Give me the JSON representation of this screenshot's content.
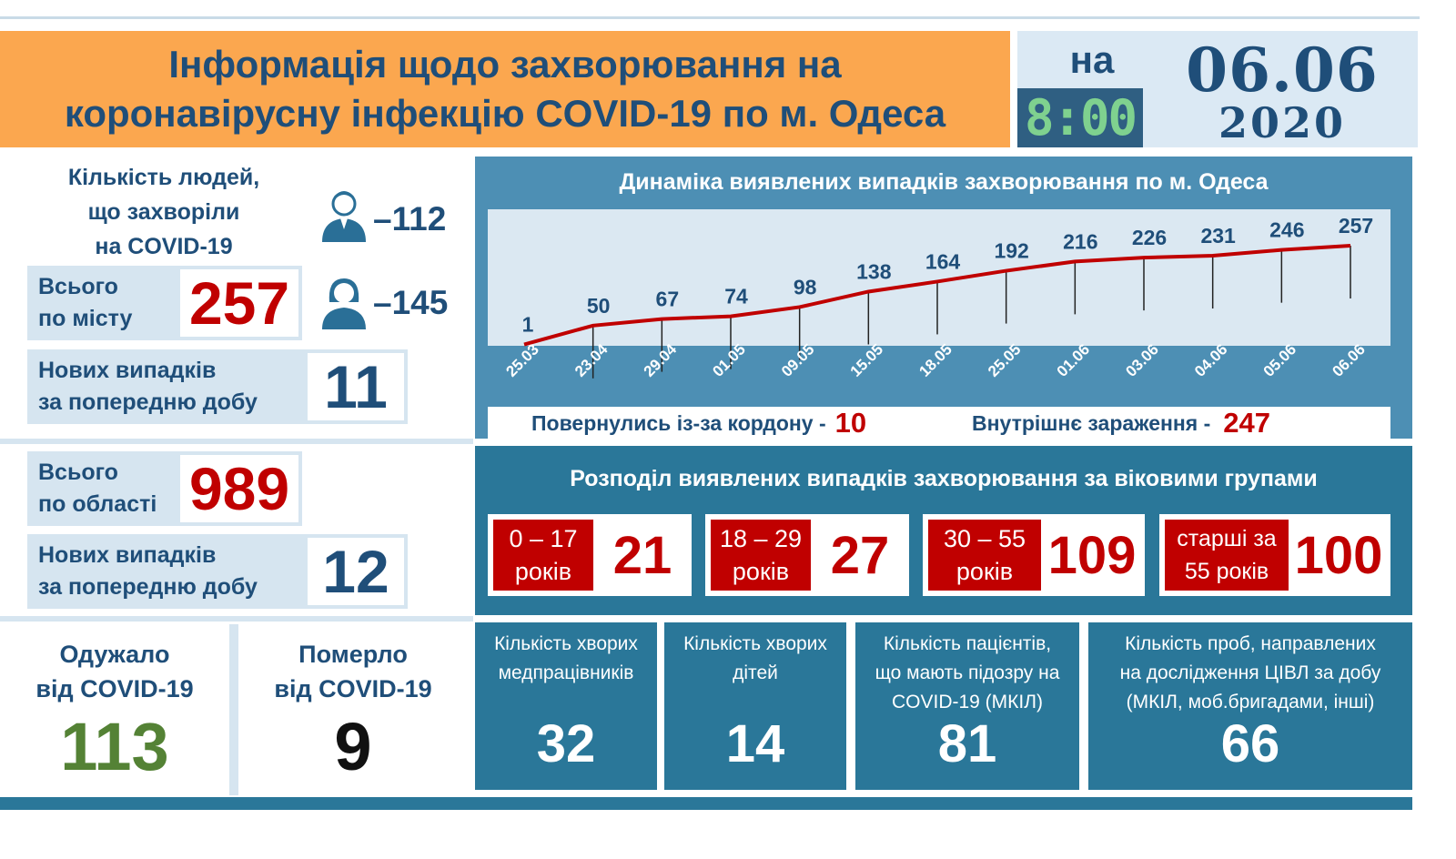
{
  "header": {
    "title_line1": "Інформація щодо захворювання на",
    "title_line2": "коронавірусну інфекцію COVID-19 по м. Одеса",
    "na": "на",
    "time": "8:00",
    "date": "06.06",
    "year": "2020"
  },
  "people": {
    "title_line1": "Кількість людей,",
    "title_line2": "що захворіли",
    "title_line3": "на COVID-19",
    "male_icon": "male-person-icon",
    "female_icon": "female-person-icon",
    "male_count": "112",
    "female_count": "145",
    "dash": "–"
  },
  "city": {
    "total_label_line1": "Всього",
    "total_label_line2": "по місту",
    "total_value": "257",
    "new_label_line1": "Нових випадків",
    "new_label_line2": "за попередню добу",
    "new_value": "11"
  },
  "region": {
    "total_label_line1": "Всього",
    "total_label_line2": "по області",
    "total_value": "989",
    "new_label_line1": "Нових випадків",
    "new_label_line2": "за попередню добу",
    "new_value": "12"
  },
  "outcomes": {
    "recovered_line1": "Одужало",
    "recovered_line2": "від COVID-19",
    "recovered_value": "113",
    "died_line1": "Померло",
    "died_line2": "від COVID-19",
    "died_value": "9"
  },
  "chart_data": {
    "type": "line",
    "title": "Динаміка виявлених випадків захворювання по м. Одеса",
    "categories": [
      "25.03",
      "23.04",
      "29.04",
      "01.05",
      "09.05",
      "15.05",
      "18.05",
      "25.05",
      "01.06",
      "03.06",
      "04.06",
      "05.06",
      "06.06"
    ],
    "values": [
      1,
      50,
      67,
      74,
      98,
      138,
      164,
      192,
      216,
      226,
      231,
      246,
      257
    ],
    "line_color": "#c00000",
    "grid": false
  },
  "summary": {
    "returned_label": "Повернулись із-за кордону -",
    "returned_value": "10",
    "internal_label": "Внутрішнє зараження -",
    "internal_value": "247"
  },
  "age": {
    "title": "Розподіл виявлених випадків захворювання за віковими групами",
    "groups": [
      {
        "line1": "0 – 17",
        "line2": "років",
        "value": "21"
      },
      {
        "line1": "18 – 29",
        "line2": "років",
        "value": "27"
      },
      {
        "line1": "30 – 55",
        "line2": "років",
        "value": "109"
      },
      {
        "line1": "старші за",
        "line2": "55 років",
        "value": "100"
      }
    ]
  },
  "stats": [
    {
      "line1": "Кількість хворих",
      "line2": "медпрацівників",
      "line3": "",
      "value": "32"
    },
    {
      "line1": "Кількість хворих",
      "line2": "дітей",
      "line3": "",
      "value": "14"
    },
    {
      "line1": "Кількість пацієнтів,",
      "line2": "що мають підозру на",
      "line3": "COVID-19 (МКІЛ)",
      "value": "81"
    },
    {
      "line1": "Кількість проб, направлених",
      "line2": "на дослідження ЦІВЛ за добу",
      "line3": "(МКІЛ, моб.бригадами, інші)",
      "value": "66"
    }
  ],
  "colors": {
    "header_orange": "#fba74f",
    "navy": "#1f4e79",
    "red": "#c00000",
    "green": "#548235",
    "teal": "#2a7799",
    "light_blue": "#d6e5f0"
  }
}
